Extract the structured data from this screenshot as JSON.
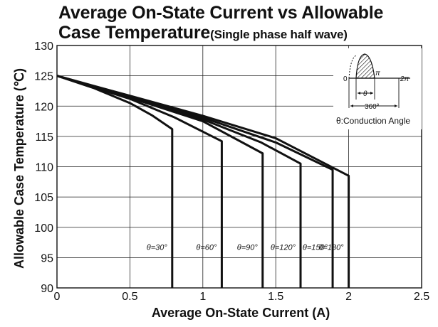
{
  "title": {
    "line1": "Average On-State Current vs Allowable",
    "line2": "Case Temperature",
    "note": "(Single phase half wave)"
  },
  "chart_data": {
    "type": "line",
    "xlabel": "Average On-State Current (A)",
    "ylabel": "Allowable Case Temperature (℃)",
    "xlim": [
      0,
      2.5
    ],
    "ylim": [
      90,
      130
    ],
    "xticks": [
      0,
      0.5,
      1,
      1.5,
      2,
      2.5
    ],
    "xtick_labels": [
      "0",
      "0.5",
      "1",
      "1.5",
      "2",
      "2.5"
    ],
    "yticks": [
      90,
      95,
      100,
      105,
      110,
      115,
      120,
      125,
      130
    ],
    "ytick_labels": [
      "90",
      "95",
      "100",
      "105",
      "110",
      "115",
      "120",
      "125",
      "130"
    ],
    "grid": true,
    "series": [
      {
        "name": "θ=30°",
        "x": [
          0,
          0.25,
          0.5,
          0.65,
          0.79,
          0.79
        ],
        "y": [
          125,
          123,
          120.5,
          118.5,
          116.2,
          90
        ]
      },
      {
        "name": "θ=60°",
        "x": [
          0,
          0.5,
          0.8,
          1.13,
          1.13
        ],
        "y": [
          125,
          121.2,
          118.2,
          114.2,
          90
        ]
      },
      {
        "name": "θ=90°",
        "x": [
          0,
          0.5,
          1.0,
          1.41,
          1.41
        ],
        "y": [
          125,
          121.4,
          117.5,
          112.2,
          90
        ]
      },
      {
        "name": "θ=120°",
        "x": [
          0,
          0.5,
          1.0,
          1.4,
          1.67,
          1.67
        ],
        "y": [
          125,
          121.5,
          117.8,
          114.0,
          110.5,
          90
        ]
      },
      {
        "name": "θ=150°",
        "x": [
          0,
          0.5,
          1.0,
          1.5,
          1.89,
          1.89
        ],
        "y": [
          125,
          121.6,
          118.1,
          114.0,
          109.5,
          90
        ]
      },
      {
        "name": "θ=180°",
        "x": [
          0,
          0.5,
          1.0,
          1.5,
          2.0,
          2.0
        ],
        "y": [
          125,
          121.7,
          118.4,
          114.7,
          108.5,
          90
        ]
      }
    ]
  },
  "inset": {
    "label_zero": "0",
    "label_pi": "π",
    "label_2pi": "2π",
    "label_theta": "θ",
    "label_360": "360°",
    "caption": "θ:Conduction Angle"
  }
}
